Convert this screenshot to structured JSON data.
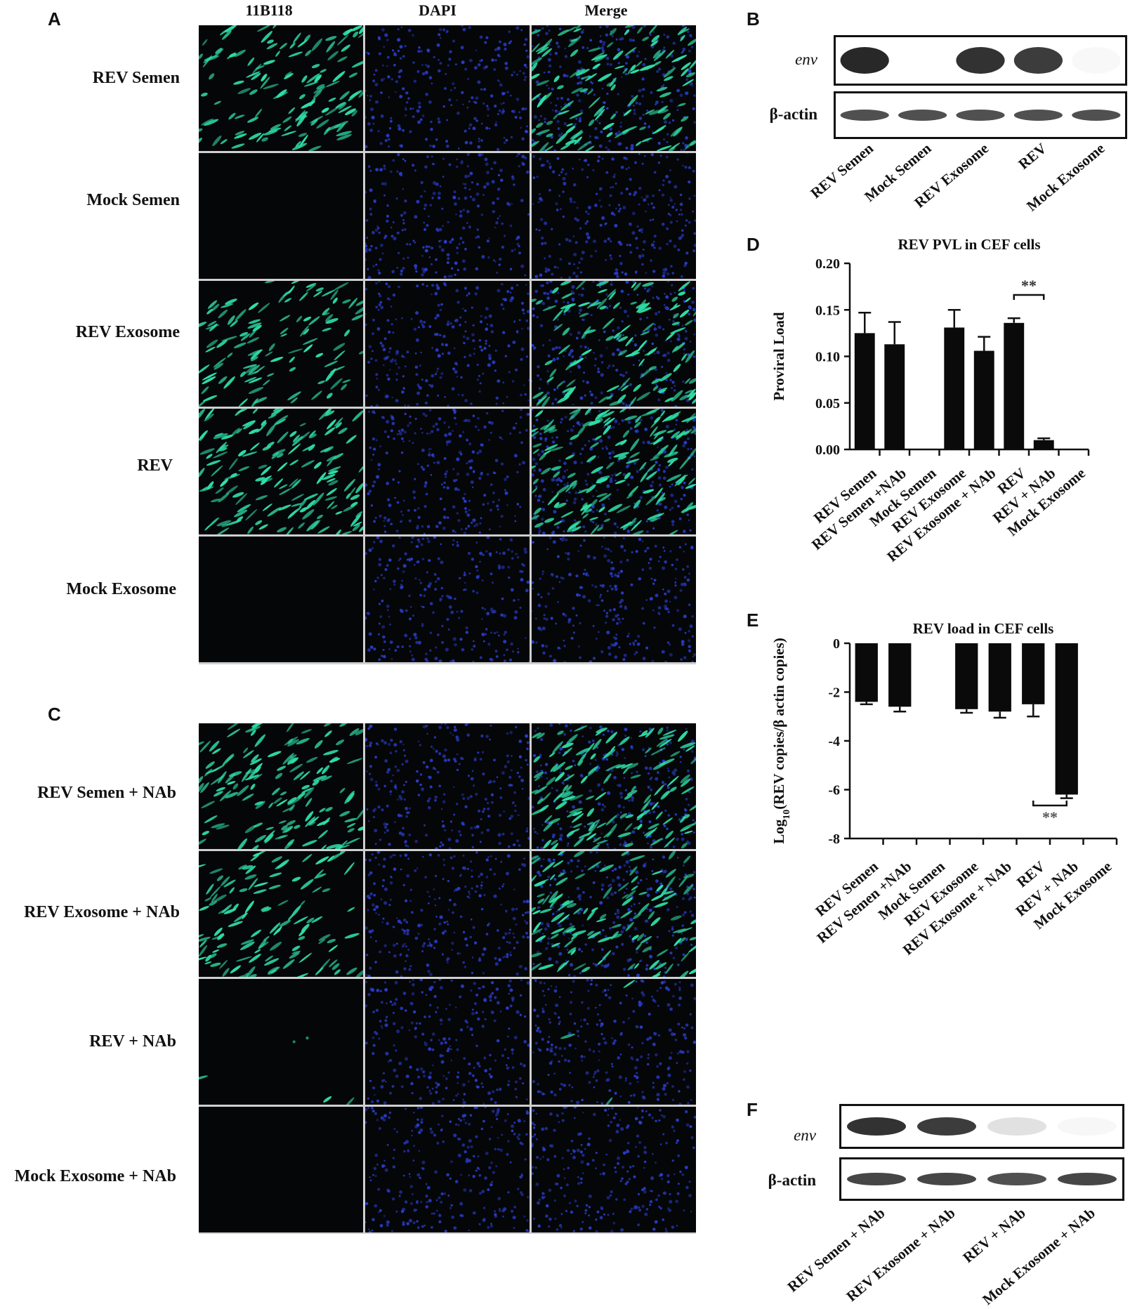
{
  "panels": {
    "A": "A",
    "B": "B",
    "C": "C",
    "D": "D",
    "E": "E",
    "F": "F"
  },
  "microscopy": {
    "columns": [
      "11B118",
      "DAPI",
      "Merge"
    ],
    "panel_A_rows": [
      {
        "label": "REV Semen",
        "green": 0.8
      },
      {
        "label": "Mock Semen",
        "green": 0
      },
      {
        "label": "REV Exosome",
        "green": 0.7
      },
      {
        "label": "REV",
        "green": 1.0
      },
      {
        "label": "Mock Exosome",
        "green": 0
      }
    ],
    "panel_C_rows": [
      {
        "label": "REV Semen + NAb",
        "green": 0.9
      },
      {
        "label": "REV Exosome + NAb",
        "green": 0.75
      },
      {
        "label": "REV + NAb",
        "green": 0.02
      },
      {
        "label": "Mock Exosome + NAb",
        "green": 0
      }
    ],
    "colors": {
      "green": "#2fe0a8",
      "blue": "#2a3fd0",
      "background": "#050608",
      "grid": "#cfcfcf"
    }
  },
  "blot_B": {
    "rows": [
      {
        "label": "env",
        "italic": true
      },
      {
        "label": "β-actin",
        "italic": false
      }
    ],
    "lanes": [
      "REV Semen",
      "Mock Semen",
      "REV Exosome",
      "REV",
      "Mock Exosome"
    ],
    "env_intensity": [
      1.0,
      0.0,
      0.95,
      0.9,
      0.02
    ],
    "actin_intensity": [
      0.8,
      0.8,
      0.8,
      0.8,
      0.8
    ]
  },
  "blot_F": {
    "rows": [
      {
        "label": "env",
        "italic": true
      },
      {
        "label": "β-actin",
        "italic": false
      }
    ],
    "lanes": [
      "REV Semen + NAb",
      "REV Exosome + NAb",
      "REV  + NAb",
      "Mock Exosome + NAb"
    ],
    "env_intensity": [
      0.95,
      0.9,
      0.2,
      0.03
    ],
    "actin_intensity": [
      0.85,
      0.85,
      0.8,
      0.85
    ]
  },
  "chart_data": [
    {
      "panel": "D",
      "type": "bar",
      "title": "REV PVL in CEF cells",
      "ylabel": "Proviral Load",
      "xlabel": "",
      "categories": [
        "REV Semen",
        "REV Semen +NAb",
        "Mock Semen",
        "REV Exosome",
        "REV Exosome + NAb",
        "REV",
        "REV + NAb",
        "Mock Exosome"
      ],
      "values": [
        0.125,
        0.113,
        0.0,
        0.131,
        0.106,
        0.136,
        0.01,
        0.0
      ],
      "errors": [
        0.022,
        0.024,
        0.0,
        0.019,
        0.015,
        0.005,
        0.002,
        0.0
      ],
      "ylim": [
        0,
        0.2
      ],
      "yticks": [
        "0.00",
        "0.05",
        "0.10",
        "0.15",
        "0.20"
      ],
      "significance": {
        "label": "**",
        "from": 5,
        "to": 6
      },
      "grid": false
    },
    {
      "panel": "E",
      "type": "bar",
      "title": "REV load in CEF cells",
      "ylabel": "Log10 (REV copies/β actin copies)",
      "ylabel_parts": {
        "prefix": "Log",
        "subscript": "10",
        "suffix": "(REV copies/β  actin copies)"
      },
      "xlabel": "",
      "categories": [
        "REV Semen",
        "REV Semen +NAb",
        "Mock Semen",
        "REV Exosome",
        "REV Exosome + NAb",
        "REV",
        "REV + NAb",
        "Mock Exosome"
      ],
      "values": [
        -2.4,
        -2.6,
        0.0,
        -2.7,
        -2.8,
        -2.5,
        -6.2,
        0.0
      ],
      "errors": [
        0.1,
        0.2,
        0.0,
        0.15,
        0.25,
        0.5,
        0.15,
        0.0
      ],
      "ylim": [
        -8,
        0
      ],
      "yticks": [
        "0",
        "-2",
        "-4",
        "-6",
        "-8"
      ],
      "significance": {
        "label": "**",
        "from": 5,
        "to": 6
      },
      "grid": false
    }
  ]
}
